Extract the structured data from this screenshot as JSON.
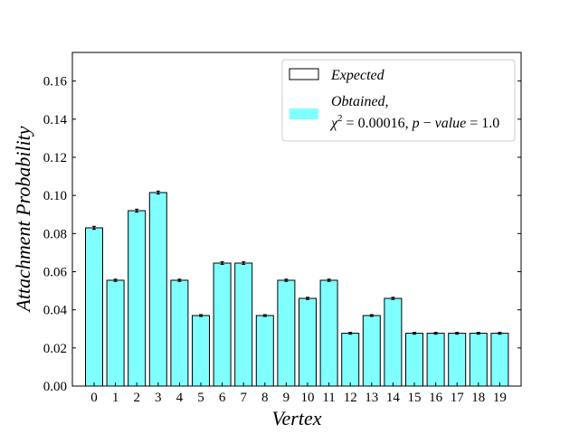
{
  "chart_data": {
    "type": "bar",
    "xlabel": "Vertex",
    "ylabel": "Attachment Probability",
    "ylim": [
      0,
      0.175
    ],
    "yticks": [
      "0.00",
      "0.02",
      "0.04",
      "0.06",
      "0.08",
      "0.10",
      "0.12",
      "0.14",
      "0.16"
    ],
    "categories": [
      "0",
      "1",
      "2",
      "3",
      "4",
      "5",
      "6",
      "7",
      "8",
      "9",
      "10",
      "11",
      "12",
      "13",
      "14",
      "15",
      "16",
      "17",
      "18",
      "19"
    ],
    "series": [
      {
        "name": "Expected",
        "values": [
          0.083,
          0.0555,
          0.092,
          0.1015,
          0.0555,
          0.037,
          0.0645,
          0.0645,
          0.037,
          0.0555,
          0.046,
          0.0555,
          0.0277,
          0.037,
          0.046,
          0.0277,
          0.0277,
          0.0277,
          0.0277,
          0.0277
        ]
      },
      {
        "name": "Obtained,",
        "values": [
          0.083,
          0.0555,
          0.092,
          0.1015,
          0.0555,
          0.037,
          0.0645,
          0.0645,
          0.037,
          0.0555,
          0.046,
          0.0555,
          0.0277,
          0.037,
          0.046,
          0.0277,
          0.0277,
          0.0277,
          0.0277,
          0.0277
        ],
        "errors": [
          0.0008,
          0.0006,
          0.0008,
          0.0008,
          0.0006,
          0.0005,
          0.0007,
          0.0007,
          0.0005,
          0.0006,
          0.0006,
          0.0006,
          0.0005,
          0.0005,
          0.0006,
          0.0005,
          0.0005,
          0.0005,
          0.0005,
          0.0005
        ]
      }
    ],
    "legend": {
      "position": "top-right",
      "expected_label": "Expected",
      "obtained_label": "Obtained,",
      "stat_chi": "χ",
      "stat_chi_exp": "2",
      "stat_text": " = 0.00016, ",
      "stat_p": "p",
      "stat_minus": " − ",
      "stat_value": "value",
      "stat_tail": " = 1.0"
    },
    "colors": {
      "bar_fill": "#80ffff",
      "bar_edge": "#000000",
      "error_bar": "#000000",
      "legend_obtained": "#80ffff",
      "axis": "#000000"
    }
  }
}
